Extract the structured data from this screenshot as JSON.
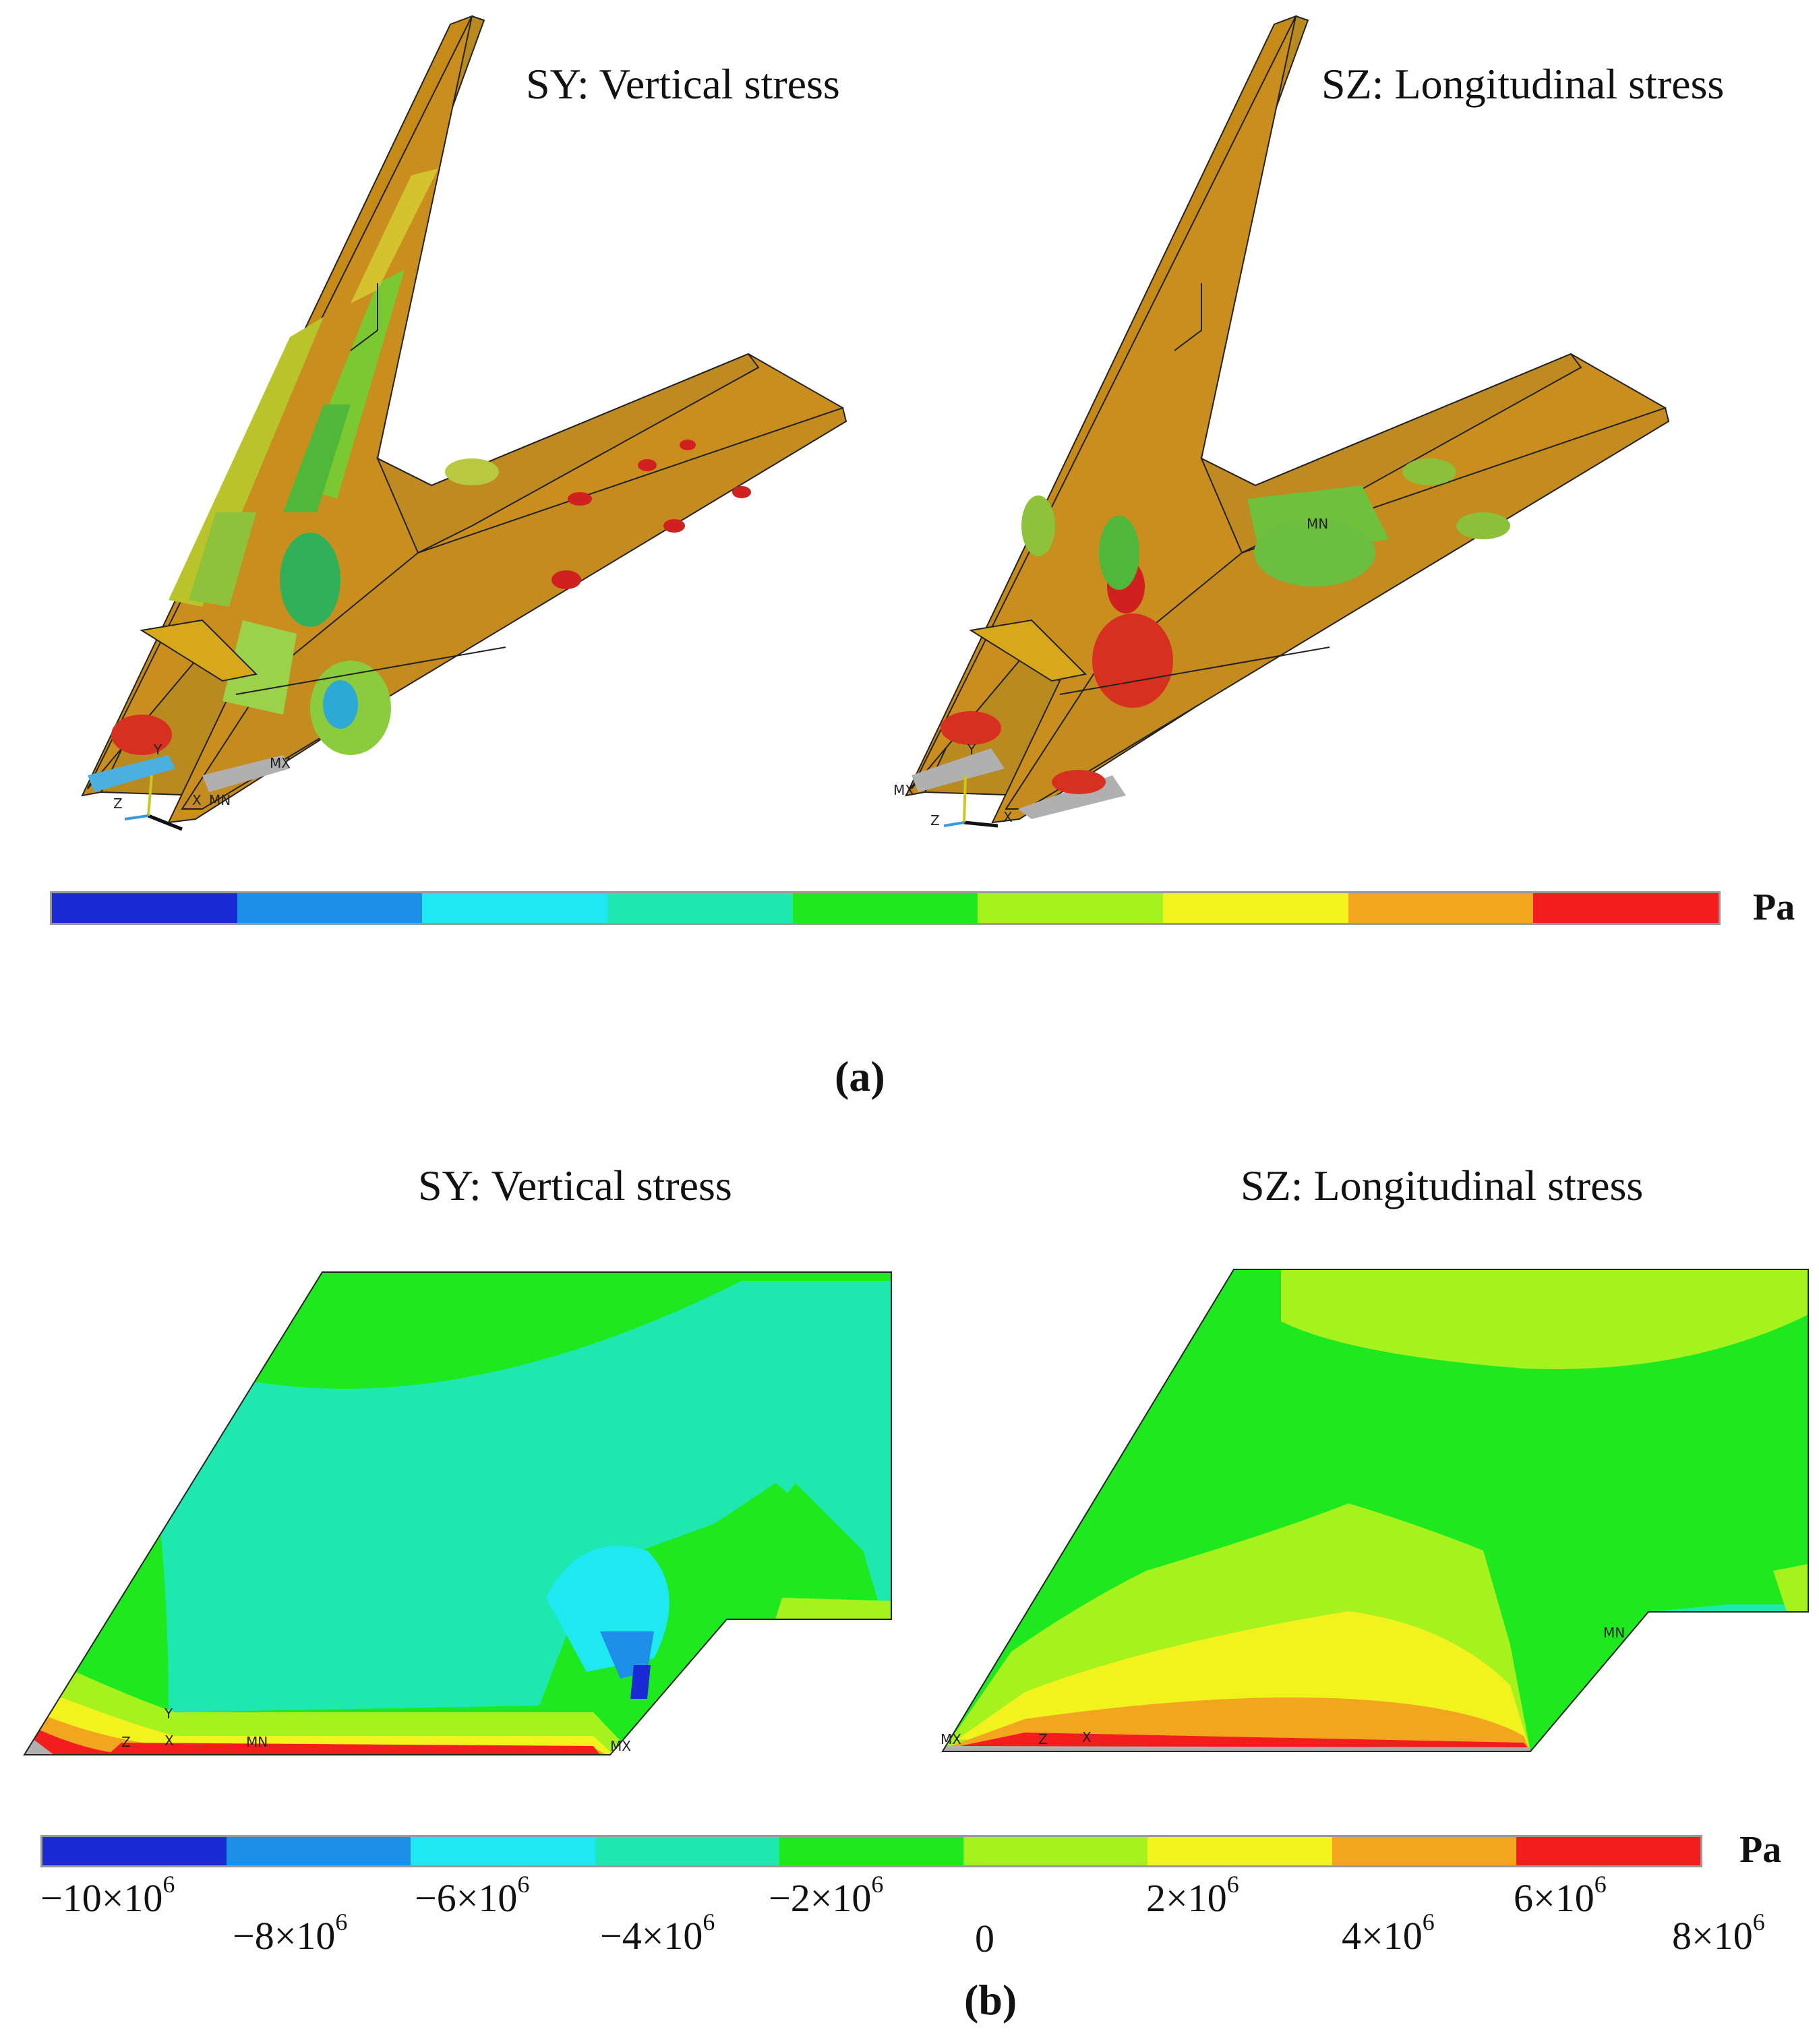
{
  "panel_a": {
    "left_title": "SY: Vertical stress",
    "right_title": "SZ: Longitudinal stress",
    "unit": "Pa",
    "caption": "(a)",
    "markers_left": [
      "MX",
      "MN",
      "X",
      "Y",
      "Z"
    ],
    "markers_right": [
      "MN",
      "MX",
      "X",
      "Y",
      "Z"
    ]
  },
  "panel_b": {
    "left_title": "SY: Vertical stress",
    "right_title": "SZ: Longitudinal stress",
    "unit": "Pa",
    "caption": "(b)",
    "markers_left": [
      "MN",
      "MX",
      "X",
      "Y",
      "Z"
    ],
    "markers_right": [
      "MN",
      "MX",
      "X",
      "Z"
    ]
  },
  "colorbar": {
    "colors": [
      "#1a2bd6",
      "#1e8fe6",
      "#1ee8f2",
      "#1ee8b0",
      "#1ee81e",
      "#a6f21e",
      "#f2f21e",
      "#f2a51e",
      "#f21e1e"
    ],
    "ticks": [
      {
        "base": "−10×10",
        "exp": "6"
      },
      {
        "base": "−8×10",
        "exp": "6"
      },
      {
        "base": "−6×10",
        "exp": "6"
      },
      {
        "base": "−4×10",
        "exp": "6"
      },
      {
        "base": "−2×10",
        "exp": "6"
      },
      {
        "base": "0",
        "exp": ""
      },
      {
        "base": "2×10",
        "exp": "6"
      },
      {
        "base": "4×10",
        "exp": "6"
      },
      {
        "base": "6×10",
        "exp": "6"
      },
      {
        "base": "8×10",
        "exp": "6"
      }
    ]
  }
}
